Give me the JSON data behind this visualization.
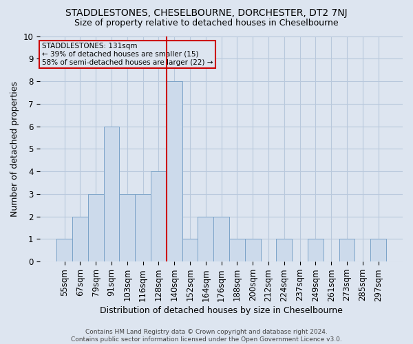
{
  "title": "STADDLESTONES, CHESELBOURNE, DORCHESTER, DT2 7NJ",
  "subtitle": "Size of property relative to detached houses in Cheselbourne",
  "xlabel": "Distribution of detached houses by size in Cheselbourne",
  "ylabel": "Number of detached properties",
  "footer_line1": "Contains HM Land Registry data © Crown copyright and database right 2024.",
  "footer_line2": "Contains public sector information licensed under the Open Government Licence v3.0.",
  "annotation_line1": "STADDLESTONES: 131sqm",
  "annotation_line2": "← 39% of detached houses are smaller (15)",
  "annotation_line3": "58% of semi-detached houses are larger (22) →",
  "bar_labels": [
    "55sqm",
    "67sqm",
    "79sqm",
    "91sqm",
    "103sqm",
    "116sqm",
    "128sqm",
    "140sqm",
    "152sqm",
    "164sqm",
    "176sqm",
    "188sqm",
    "200sqm",
    "212sqm",
    "224sqm",
    "237sqm",
    "249sqm",
    "261sqm",
    "273sqm",
    "285sqm",
    "297sqm"
  ],
  "bar_values": [
    1,
    2,
    3,
    6,
    3,
    3,
    4,
    8,
    1,
    2,
    2,
    1,
    1,
    0,
    1,
    0,
    1,
    0,
    1,
    0,
    1
  ],
  "bar_color": "#ccdaeb",
  "bar_edge_color": "#7ba3c8",
  "grid_color": "#b8c8dc",
  "background_color": "#dde5f0",
  "vline_x_index": 7,
  "vline_color": "#cc0000",
  "annotation_box_color": "#cc0000",
  "ylim": [
    0,
    10
  ],
  "yticks": [
    0,
    1,
    2,
    3,
    4,
    5,
    6,
    7,
    8,
    9,
    10
  ],
  "title_fontsize": 10,
  "subtitle_fontsize": 9,
  "ylabel_fontsize": 9,
  "xlabel_fontsize": 9,
  "tick_fontsize": 8.5
}
